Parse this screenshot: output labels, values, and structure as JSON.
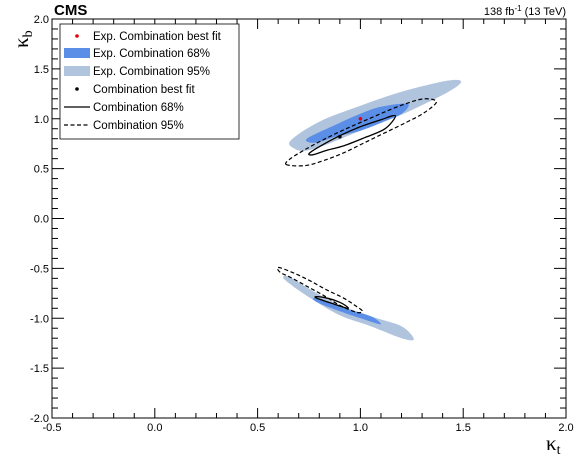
{
  "chart_data": {
    "type": "contour",
    "experiment_label": "CMS",
    "lumi_label": {
      "value": "138 fb",
      "sup": "-1",
      "energy": " (13 TeV)"
    },
    "xlabel": {
      "main": "κ",
      "sub": "t"
    },
    "ylabel": {
      "main": "κ",
      "sub": "b"
    },
    "xlim": [
      -0.5,
      2.0
    ],
    "ylim": [
      -2.0,
      2.0
    ],
    "x_ticks": [
      "-0.5",
      "0.0",
      "0.5",
      "1.0",
      "1.5",
      "2.0"
    ],
    "y_ticks": [
      "-2.0",
      "-1.5",
      "-1.0",
      "-0.5",
      "0.0",
      "0.5",
      "1.0",
      "1.5",
      "2.0"
    ],
    "colors": {
      "exp68": "#5b8ee6",
      "exp95": "#b0c4de",
      "exp_best": "#e8000b",
      "obs": "#000000"
    },
    "legend": [
      {
        "label": "Exp. Combination best fit",
        "style": "red-dot"
      },
      {
        "label": "Exp. Combination 68%",
        "style": "blue-box"
      },
      {
        "label": "Exp. Combination 95%",
        "style": "lightblue-box"
      },
      {
        "label": "Combination best fit",
        "style": "black-dot"
      },
      {
        "label": "Combination 68%",
        "style": "solid-line"
      },
      {
        "label": "Combination 95%",
        "style": "dashed-line"
      }
    ],
    "regions": {
      "exp95": [
        [
          [
            0.66,
            0.78
          ],
          [
            0.8,
            0.97
          ],
          [
            1.0,
            1.13
          ],
          [
            1.2,
            1.27
          ],
          [
            1.42,
            1.38
          ],
          [
            1.49,
            1.37
          ],
          [
            1.42,
            1.26
          ],
          [
            1.2,
            1.04
          ],
          [
            1.0,
            0.88
          ],
          [
            0.82,
            0.73
          ],
          [
            0.73,
            0.68
          ],
          [
            0.68,
            0.7
          ]
        ],
        [
          [
            0.63,
            -0.61
          ],
          [
            0.75,
            -0.79
          ],
          [
            0.9,
            -0.97
          ],
          [
            1.05,
            -1.08
          ],
          [
            1.2,
            -1.2
          ],
          [
            1.26,
            -1.21
          ],
          [
            1.2,
            -1.08
          ],
          [
            1.05,
            -0.98
          ],
          [
            0.88,
            -0.85
          ],
          [
            0.73,
            -0.68
          ],
          [
            0.65,
            -0.58
          ]
        ]
      ],
      "exp68": [
        [
          [
            0.74,
            0.8
          ],
          [
            0.88,
            0.94
          ],
          [
            1.0,
            1.05
          ],
          [
            1.1,
            1.12
          ],
          [
            1.23,
            1.15
          ],
          [
            1.2,
            1.05
          ],
          [
            1.1,
            0.96
          ],
          [
            1.0,
            0.88
          ],
          [
            0.88,
            0.82
          ],
          [
            0.78,
            0.76
          ]
        ],
        [
          [
            0.78,
            -0.8
          ],
          [
            0.92,
            -0.9
          ],
          [
            1.05,
            -0.98
          ],
          [
            1.1,
            -1.06
          ],
          [
            1.03,
            -1.02
          ],
          [
            0.9,
            -0.93
          ],
          [
            0.79,
            -0.84
          ]
        ]
      ],
      "obs95": [
        [
          [
            0.64,
            0.54
          ],
          [
            0.66,
            0.6
          ],
          [
            0.73,
            0.69
          ],
          [
            0.82,
            0.79
          ],
          [
            0.92,
            0.89
          ],
          [
            1.02,
            0.98
          ],
          [
            1.12,
            1.07
          ],
          [
            1.22,
            1.15
          ],
          [
            1.31,
            1.2
          ],
          [
            1.37,
            1.17
          ],
          [
            1.31,
            1.06
          ],
          [
            1.22,
            0.96
          ],
          [
            1.12,
            0.86
          ],
          [
            1.02,
            0.76
          ],
          [
            0.92,
            0.66
          ],
          [
            0.82,
            0.58
          ],
          [
            0.73,
            0.53
          ]
        ],
        [
          [
            0.6,
            -0.49
          ],
          [
            0.68,
            -0.55
          ],
          [
            0.76,
            -0.63
          ],
          [
            0.84,
            -0.72
          ],
          [
            0.92,
            -0.8
          ],
          [
            0.98,
            -0.88
          ],
          [
            1.01,
            -0.93
          ],
          [
            0.98,
            -0.94
          ],
          [
            0.9,
            -0.87
          ],
          [
            0.82,
            -0.77
          ],
          [
            0.74,
            -0.68
          ],
          [
            0.66,
            -0.59
          ],
          [
            0.61,
            -0.54
          ]
        ]
      ],
      "obs68": [
        [
          [
            0.75,
            0.65
          ],
          [
            0.8,
            0.72
          ],
          [
            0.9,
            0.83
          ],
          [
            1.0,
            0.92
          ],
          [
            1.1,
            0.99
          ],
          [
            1.17,
            1.03
          ],
          [
            1.12,
            0.9
          ],
          [
            1.02,
            0.81
          ],
          [
            0.92,
            0.73
          ],
          [
            0.83,
            0.68
          ],
          [
            0.77,
            0.64
          ]
        ],
        [
          [
            0.78,
            -0.79
          ],
          [
            0.86,
            -0.85
          ],
          [
            0.94,
            -0.9
          ],
          [
            0.9,
            -0.84
          ],
          [
            0.82,
            -0.79
          ]
        ]
      ]
    },
    "best_fit_expected": {
      "x": 1.0,
      "y": 1.0
    },
    "best_fit_observed": {
      "x": 0.9,
      "y": 0.82
    }
  }
}
